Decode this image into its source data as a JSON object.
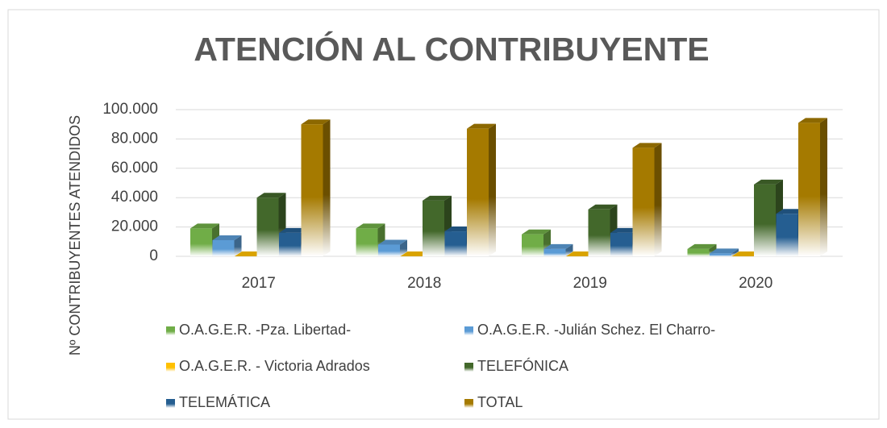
{
  "chart_data": {
    "type": "bar3d",
    "title": "ATENCIÓN AL CONTRIBUYENTE",
    "y_label": "Nº CONTRIBUYENTES ATENDIDOS",
    "categories": [
      "2017",
      "2018",
      "2019",
      "2020"
    ],
    "series": [
      {
        "name": "O.A.G.E.R. -Pza. Libertad-",
        "color": "#70ad47",
        "values": [
          19000,
          19000,
          15000,
          5000
        ]
      },
      {
        "name": "O.A.G.E.R. -Julián Schez. El Charro-",
        "color": "#5b9bd5",
        "values": [
          11000,
          8000,
          5000,
          2000
        ]
      },
      {
        "name": "O.A.G.E.R. - Victoria Adrados",
        "color": "#ffc000",
        "values": [
          0,
          0,
          0,
          0
        ]
      },
      {
        "name": "TELEFÓNICA",
        "color": "#43682b",
        "values": [
          40000,
          38000,
          32000,
          49000
        ]
      },
      {
        "name": "TELEMÁTICA",
        "color": "#255e91",
        "values": [
          16000,
          17000,
          16000,
          29000
        ]
      },
      {
        "name": "TOTAL",
        "color": "#a57a00",
        "values": [
          90000,
          87000,
          74000,
          91000
        ]
      }
    ],
    "ylim": [
      0,
      100000
    ],
    "yticks": [
      0,
      {
        "value": 20000,
        "label": "20.000"
      },
      {
        "value": 40000,
        "label": "40.000"
      },
      {
        "value": 60000,
        "label": "60.000"
      },
      {
        "value": 80000,
        "label": "80.000"
      },
      {
        "value": 100000,
        "label": "100.000"
      }
    ],
    "grid": true,
    "legend": "bottom"
  }
}
